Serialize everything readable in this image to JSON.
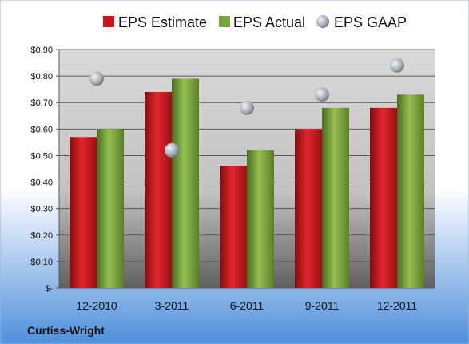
{
  "company": "Curtiss-Wright",
  "colors": {
    "estimate": "#c8161d",
    "actual": "#7da43c",
    "gaap": "#a9b2bb",
    "background_top": "#ffffff",
    "background_bottom": "#5b9ae0"
  },
  "chart_data": {
    "type": "bar",
    "categories": [
      "12-2010",
      "3-2011",
      "6-2011",
      "9-2011",
      "12-2011"
    ],
    "series": [
      {
        "name": "EPS Estimate",
        "kind": "bar",
        "values": [
          0.57,
          0.74,
          0.46,
          0.6,
          0.68
        ]
      },
      {
        "name": "EPS Actual",
        "kind": "bar",
        "values": [
          0.6,
          0.79,
          0.52,
          0.68,
          0.73
        ]
      },
      {
        "name": "EPS GAAP",
        "kind": "scatter",
        "values": [
          0.79,
          0.52,
          0.68,
          0.73,
          0.84
        ]
      }
    ],
    "ylim": [
      0,
      0.9
    ],
    "yticks": [
      0,
      0.1,
      0.2,
      0.3,
      0.4,
      0.5,
      0.6,
      0.7,
      0.8,
      0.9
    ],
    "ytick_labels": [
      "$-",
      "$0.10",
      "$0.20",
      "$0.30",
      "$0.40",
      "$0.50",
      "$0.60",
      "$0.70",
      "$0.80",
      "$0.90"
    ],
    "legend_position": "top",
    "grid": true
  }
}
